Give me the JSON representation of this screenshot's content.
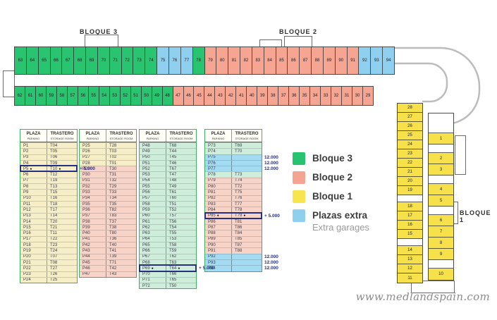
{
  "labels": {
    "bloque3": "BLOQUE 3",
    "bloque2": "BLOQUE 2",
    "bloque1": "BLOQUE 1"
  },
  "watermark": "www.medlandspain.com",
  "legend": {
    "items": [
      {
        "label": "Bloque 3",
        "color": "#27c470"
      },
      {
        "label": "Bloque 2",
        "color": "#f5a493"
      },
      {
        "label": "Bloque 1",
        "color": "#f8e44c"
      },
      {
        "label": "Plazas extra",
        "sublabel": "Extra garages",
        "color": "#8fd0ef"
      }
    ]
  },
  "colors": {
    "row_yellow": "#f5eec7",
    "row_salmon": "#f8d3c8",
    "row_green": "#ceedda",
    "row_blue": "#a3dbf3",
    "highlight_navy": "#26307e",
    "table_border_green": "#3db15f"
  },
  "table_header": {
    "col1": "PLAZA",
    "col1_sub": "PARKING",
    "col2": "TRASTERO",
    "col2_sub": "STORAGE ROOM"
  },
  "tables": [
    {
      "rows": [
        {
          "p": "P1",
          "t": "T04",
          "bg": "yellow"
        },
        {
          "p": "P2",
          "t": "T05",
          "bg": "yellow"
        },
        {
          "p": "P3",
          "t": "T06",
          "bg": "yellow"
        },
        {
          "p": "P4",
          "t": "T09",
          "bg": "yellow"
        },
        {
          "p": "P5",
          "t": "T10",
          "bg": "yellow",
          "hl": true,
          "dots": true,
          "note": "+ 5.000"
        },
        {
          "p": "P6",
          "t": "T12",
          "bg": "yellow"
        },
        {
          "p": "P7",
          "t": "T19",
          "bg": "yellow"
        },
        {
          "p": "P8",
          "t": "T13",
          "bg": "yellow"
        },
        {
          "p": "P9",
          "t": "T15",
          "bg": "yellow"
        },
        {
          "p": "P10",
          "t": "T16",
          "bg": "yellow"
        },
        {
          "p": "P11",
          "t": "T18",
          "bg": "yellow"
        },
        {
          "p": "P12",
          "t": "T17",
          "bg": "yellow"
        },
        {
          "p": "P13",
          "t": "T14",
          "bg": "yellow"
        },
        {
          "p": "P14",
          "t": "T20",
          "bg": "yellow"
        },
        {
          "p": "P15",
          "t": "T21",
          "bg": "yellow"
        },
        {
          "p": "P16",
          "t": "T11",
          "bg": "yellow"
        },
        {
          "p": "P17",
          "t": "T22",
          "bg": "yellow"
        },
        {
          "p": "P18",
          "t": "T23",
          "bg": "yellow"
        },
        {
          "p": "P19",
          "t": "T24",
          "bg": "yellow"
        },
        {
          "p": "P20",
          "t": "T07",
          "bg": "yellow"
        },
        {
          "p": "P21",
          "t": "T08",
          "bg": "yellow"
        },
        {
          "p": "P22",
          "t": "T27",
          "bg": "yellow"
        },
        {
          "p": "P23",
          "t": "T26",
          "bg": "yellow"
        },
        {
          "p": "P24",
          "t": "T25",
          "bg": "yellow"
        }
      ]
    },
    {
      "rows": [
        {
          "p": "P25",
          "t": "T28",
          "bg": "yellow"
        },
        {
          "p": "P26",
          "t": "T03",
          "bg": "yellow"
        },
        {
          "p": "P27",
          "t": "T02",
          "bg": "yellow"
        },
        {
          "p": "P28",
          "t": "T01",
          "bg": "yellow"
        },
        {
          "p": "P29",
          "t": "T30",
          "bg": "salmon"
        },
        {
          "p": "P30",
          "t": "T31",
          "bg": "salmon"
        },
        {
          "p": "P31",
          "t": "T32",
          "bg": "salmon"
        },
        {
          "p": "P32",
          "t": "T29",
          "bg": "salmon"
        },
        {
          "p": "P33",
          "t": "T33",
          "bg": "salmon"
        },
        {
          "p": "P34",
          "t": "T34",
          "bg": "salmon"
        },
        {
          "p": "P35",
          "t": "T35",
          "bg": "salmon"
        },
        {
          "p": "P36",
          "t": "T82",
          "bg": "salmon"
        },
        {
          "p": "P37",
          "t": "T83",
          "bg": "salmon"
        },
        {
          "p": "P38",
          "t": "T37",
          "bg": "salmon"
        },
        {
          "p": "P39",
          "t": "T38",
          "bg": "salmon"
        },
        {
          "p": "P40",
          "t": "T80",
          "bg": "salmon"
        },
        {
          "p": "P41",
          "t": "T36",
          "bg": "salmon"
        },
        {
          "p": "P42",
          "t": "T40",
          "bg": "salmon"
        },
        {
          "p": "P43",
          "t": "T41",
          "bg": "salmon"
        },
        {
          "p": "P44",
          "t": "T39",
          "bg": "salmon"
        },
        {
          "p": "P45",
          "t": "T71",
          "bg": "salmon"
        },
        {
          "p": "P46",
          "t": "T42",
          "bg": "salmon"
        },
        {
          "p": "P47",
          "t": "T43",
          "bg": "salmon"
        }
      ]
    },
    {
      "rows": [
        {
          "p": "P48",
          "t": "T68",
          "bg": "green"
        },
        {
          "p": "P49",
          "t": "T44",
          "bg": "green"
        },
        {
          "p": "P50",
          "t": "T45",
          "bg": "green"
        },
        {
          "p": "P51",
          "t": "T46",
          "bg": "green"
        },
        {
          "p": "P52",
          "t": "T67",
          "bg": "green"
        },
        {
          "p": "P53",
          "t": "T47",
          "bg": "green"
        },
        {
          "p": "P54",
          "t": "T48",
          "bg": "green"
        },
        {
          "p": "P55",
          "t": "T49",
          "bg": "green"
        },
        {
          "p": "P56",
          "t": "T61",
          "bg": "green"
        },
        {
          "p": "P57",
          "t": "T60",
          "bg": "green"
        },
        {
          "p": "P58",
          "t": "T51",
          "bg": "green"
        },
        {
          "p": "P59",
          "t": "T52",
          "bg": "green"
        },
        {
          "p": "P60",
          "t": "T57",
          "bg": "green"
        },
        {
          "p": "P61",
          "t": "T56",
          "bg": "green"
        },
        {
          "p": "P62",
          "t": "T54",
          "bg": "green"
        },
        {
          "p": "P63",
          "t": "T55",
          "bg": "green"
        },
        {
          "p": "P64",
          "t": "T53",
          "bg": "green"
        },
        {
          "p": "P65",
          "t": "T58",
          "bg": "green"
        },
        {
          "p": "P66",
          "t": "T59",
          "bg": "green"
        },
        {
          "p": "P67",
          "t": "T62",
          "bg": "green"
        },
        {
          "p": "P68",
          "t": "T63",
          "bg": "green"
        },
        {
          "p": "P69",
          "t": "T64",
          "bg": "green",
          "hl": true,
          "dots": true,
          "note": "+ 5.000"
        },
        {
          "p": "P70",
          "t": "T66",
          "bg": "green"
        },
        {
          "p": "P71",
          "t": "T65",
          "bg": "green"
        },
        {
          "p": "P72",
          "t": "T50",
          "bg": "green"
        }
      ]
    },
    {
      "rows": [
        {
          "p": "P73",
          "t": "T69",
          "bg": "green"
        },
        {
          "p": "P74",
          "t": "T70",
          "bg": "green"
        },
        {
          "p": "P75",
          "t": "",
          "bg": "blue",
          "note": "12.000"
        },
        {
          "p": "P76",
          "t": "",
          "bg": "blue",
          "note": "12.000"
        },
        {
          "p": "P77",
          "t": "",
          "bg": "blue",
          "note": "12.000"
        },
        {
          "p": "P78",
          "t": "T73",
          "bg": "green"
        },
        {
          "p": "P79",
          "t": "T74",
          "bg": "salmon"
        },
        {
          "p": "P80",
          "t": "T72",
          "bg": "salmon"
        },
        {
          "p": "P81",
          "t": "T75",
          "bg": "salmon"
        },
        {
          "p": "P82",
          "t": "T76",
          "bg": "salmon"
        },
        {
          "p": "P83",
          "t": "T77",
          "bg": "salmon"
        },
        {
          "p": "P84",
          "t": "T78",
          "bg": "salmon"
        },
        {
          "p": "P85",
          "t": "T79",
          "bg": "salmon",
          "hl": true,
          "dots": true,
          "note": "+ 5.000"
        },
        {
          "p": "P86",
          "t": "T81",
          "bg": "salmon"
        },
        {
          "p": "P87",
          "t": "T86",
          "bg": "salmon"
        },
        {
          "p": "P88",
          "t": "T84",
          "bg": "salmon"
        },
        {
          "p": "P89",
          "t": "T85",
          "bg": "salmon"
        },
        {
          "p": "P90",
          "t": "T87",
          "bg": "salmon"
        },
        {
          "p": "P91",
          "t": "T88",
          "bg": "salmon"
        },
        {
          "p": "P92",
          "t": "",
          "bg": "blue",
          "note": "12.000"
        },
        {
          "p": "P93",
          "t": "",
          "bg": "blue",
          "note": "12.000"
        },
        {
          "p": "P94",
          "t": "",
          "bg": "blue",
          "note": "12.000"
        }
      ]
    }
  ],
  "plan": {
    "stall_colors": {
      "g": "#29c46f",
      "s": "#f6a593",
      "y": "#f6e14b",
      "b": "#8fd0f0",
      "w": "#ffffff"
    },
    "top_row": [
      [
        "63",
        "g"
      ],
      [
        "64",
        "g"
      ],
      [
        "65",
        "g"
      ],
      [
        "66",
        "g"
      ],
      [
        "67",
        "g"
      ],
      [
        "68",
        "g"
      ],
      [
        "69",
        "g"
      ],
      [
        "70",
        "g"
      ],
      [
        "71",
        "g"
      ],
      [
        "72",
        "g"
      ],
      [
        "73",
        "g"
      ],
      [
        "74",
        "g"
      ],
      [
        "75",
        "b"
      ],
      [
        "76",
        "b"
      ],
      [
        "77",
        "b"
      ],
      [
        "78",
        "g"
      ],
      [
        "79",
        "s"
      ],
      [
        "80",
        "s"
      ],
      [
        "81",
        "s"
      ],
      [
        "82",
        "s"
      ],
      [
        "83",
        "s"
      ],
      [
        "84",
        "s"
      ],
      [
        "85",
        "s"
      ],
      [
        "86",
        "s"
      ],
      [
        "87",
        "s"
      ],
      [
        "88",
        "s"
      ],
      [
        "89",
        "s"
      ],
      [
        "90",
        "s"
      ],
      [
        "91",
        "s"
      ],
      [
        "92",
        "b"
      ],
      [
        "93",
        "b"
      ],
      [
        "94",
        "b"
      ]
    ],
    "bottom_row": [
      [
        "62",
        "g"
      ],
      [
        "61",
        "g"
      ],
      [
        "60",
        "g"
      ],
      [
        "59",
        "g"
      ],
      [
        "58",
        "g"
      ],
      [
        "57",
        "g"
      ],
      [
        "56",
        "g"
      ],
      [
        "55",
        "g"
      ],
      [
        "54",
        "g"
      ],
      [
        "53",
        "g"
      ],
      [
        "52",
        "g"
      ],
      [
        "51",
        "g"
      ],
      [
        "50",
        "g"
      ],
      [
        "49",
        "g"
      ],
      [
        "48",
        "g"
      ],
      [
        "47",
        "s"
      ],
      [
        "46",
        "s"
      ],
      [
        "45",
        "s"
      ],
      [
        "44",
        "s"
      ],
      [
        "43",
        "s"
      ],
      [
        "42",
        "s"
      ],
      [
        "41",
        "s"
      ],
      [
        "40",
        "s"
      ],
      [
        "39",
        "s"
      ],
      [
        "38",
        "s"
      ],
      [
        "37",
        "s"
      ],
      [
        "36",
        "s"
      ],
      [
        "35",
        "s"
      ],
      [
        "34",
        "s"
      ],
      [
        "33",
        "s"
      ],
      [
        "32",
        "s"
      ],
      [
        "31",
        "s"
      ],
      [
        "30",
        "s"
      ],
      [
        "29",
        "s"
      ]
    ],
    "left_col": [
      [
        "28",
        "y",
        13
      ],
      [
        "27",
        "y",
        13
      ],
      [
        "26",
        "y",
        13
      ],
      [
        "25",
        "y",
        13
      ],
      [
        "24",
        "y",
        13
      ],
      [
        "23",
        "y",
        13
      ],
      [
        "22",
        "y",
        13
      ],
      [
        "21",
        "y",
        13
      ],
      [
        "20",
        "y",
        13
      ],
      [
        "19",
        "y",
        13
      ],
      [
        "",
        "w",
        10
      ],
      [
        "18",
        "y",
        13
      ],
      [
        "17",
        "y",
        13
      ],
      [
        "16",
        "y",
        13
      ],
      [
        "15",
        "y",
        13
      ],
      [
        "",
        "w",
        10
      ],
      [
        "14",
        "y",
        13
      ],
      [
        "13",
        "y",
        13
      ],
      [
        "12",
        "y",
        13
      ],
      [
        "11",
        "y",
        13
      ]
    ],
    "right_col": [
      [
        "",
        "w",
        28
      ],
      [
        "1",
        "y",
        16
      ],
      [
        "",
        "w",
        12
      ],
      [
        "2",
        "y",
        16
      ],
      [
        "3",
        "y",
        16
      ],
      [
        "",
        "w",
        12
      ],
      [
        "4",
        "y",
        16
      ],
      [
        "5",
        "y",
        16
      ],
      [
        "",
        "w",
        12
      ],
      [
        "6",
        "y",
        16
      ],
      [
        "7",
        "y",
        16
      ],
      [
        "8",
        "y",
        16
      ],
      [
        "9",
        "y",
        16
      ],
      [
        "",
        "w",
        12
      ],
      [
        "10",
        "y",
        16
      ]
    ]
  }
}
